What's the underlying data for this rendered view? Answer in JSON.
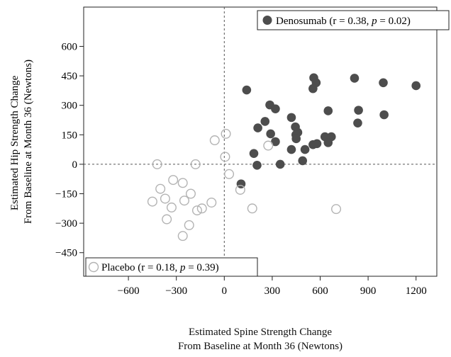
{
  "chart_data": {
    "type": "scatter",
    "xlabel": [
      "Estimated Spine Strength Change",
      "From Baseline at Month 36 (Newtons)"
    ],
    "ylabel": [
      "Estimated Hip Strength Change",
      "From Baseline at Month 36 (Newtons)"
    ],
    "xlim": [
      -880,
      1330
    ],
    "ylim": [
      -570,
      800
    ],
    "xticks": [
      -600,
      -300,
      0,
      300,
      600,
      900,
      1200
    ],
    "yticks": [
      -450,
      -300,
      -150,
      0,
      150,
      300,
      450,
      600
    ],
    "grid": false,
    "reference_lines": {
      "x": 0,
      "y": 0,
      "style": "dashed"
    },
    "legend_placement": "top-right (Denosumab), bottom-left (Placebo)",
    "series": [
      {
        "name": "Denosumab",
        "name_italic_stat": "p",
        "stat_r": "0.38",
        "stat_p": "0.02",
        "marker": "filled-circle",
        "color": "#4d4d4d",
        "points": [
          [
            140,
            378
          ],
          [
            285,
            302
          ],
          [
            320,
            282
          ],
          [
            255,
            218
          ],
          [
            210,
            185
          ],
          [
            290,
            155
          ],
          [
            320,
            115
          ],
          [
            185,
            55
          ],
          [
            205,
            -5
          ],
          [
            350,
            0
          ],
          [
            105,
            -100
          ],
          [
            420,
            238
          ],
          [
            445,
            190
          ],
          [
            460,
            162
          ],
          [
            448,
            150
          ],
          [
            450,
            130
          ],
          [
            420,
            75
          ],
          [
            505,
            75
          ],
          [
            490,
            18
          ],
          [
            555,
            100
          ],
          [
            580,
            105
          ],
          [
            560,
            440
          ],
          [
            575,
            415
          ],
          [
            555,
            385
          ],
          [
            650,
            272
          ],
          [
            630,
            140
          ],
          [
            670,
            140
          ],
          [
            650,
            110
          ],
          [
            815,
            438
          ],
          [
            995,
            415
          ],
          [
            840,
            275
          ],
          [
            835,
            210
          ],
          [
            1000,
            252
          ],
          [
            1200,
            400
          ]
        ]
      },
      {
        "name": "Placebo",
        "name_italic_stat": "p",
        "stat_r": "0.18",
        "stat_p": "0.39",
        "marker": "open-circle",
        "color": "#b3b3b3",
        "points": [
          [
            -420,
            0
          ],
          [
            -180,
            0
          ],
          [
            -400,
            -125
          ],
          [
            -320,
            -80
          ],
          [
            -260,
            -95
          ],
          [
            -450,
            -190
          ],
          [
            -370,
            -175
          ],
          [
            -330,
            -220
          ],
          [
            -250,
            -185
          ],
          [
            -210,
            -150
          ],
          [
            -360,
            -280
          ],
          [
            -220,
            -310
          ],
          [
            -260,
            -365
          ],
          [
            -170,
            -235
          ],
          [
            -140,
            -225
          ],
          [
            -80,
            -195
          ],
          [
            -60,
            122
          ],
          [
            10,
            155
          ],
          [
            5,
            38
          ],
          [
            30,
            -50
          ],
          [
            100,
            -130
          ],
          [
            175,
            -225
          ],
          [
            275,
            95
          ],
          [
            700,
            -228
          ]
        ]
      }
    ]
  }
}
